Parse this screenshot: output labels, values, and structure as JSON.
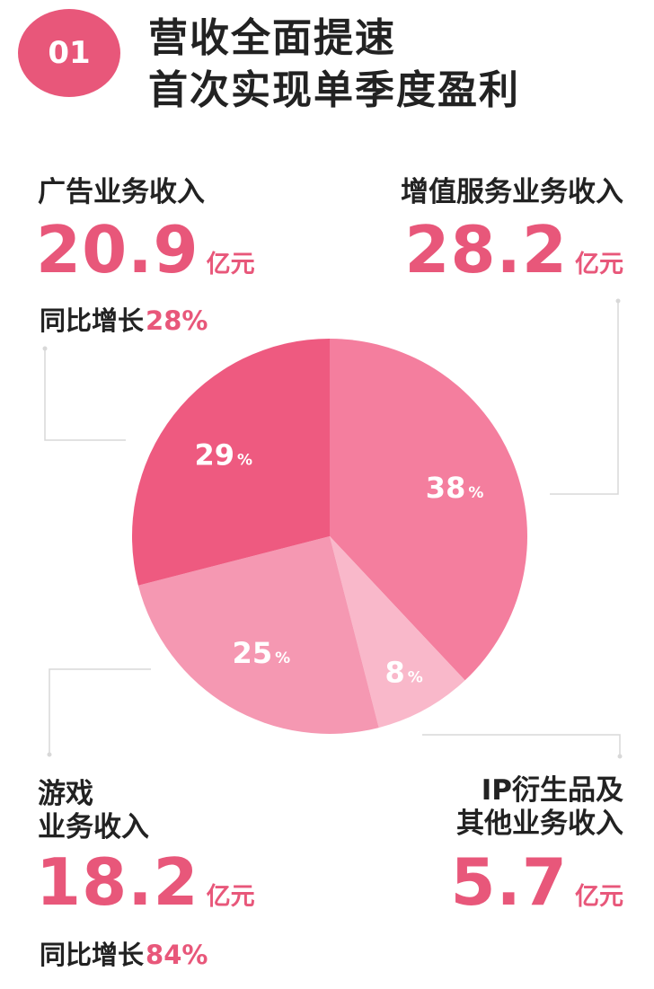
{
  "header": {
    "badge": "01",
    "title_line1": "营收全面提速",
    "title_line2": "首次实现单季度盈利"
  },
  "colors": {
    "accent": "#e8577a",
    "ad": "#ee5a80",
    "value_added": "#f47e9e",
    "ip": "#f9b8ca",
    "game": "#f598b2",
    "connector": "#d8d8d8"
  },
  "chart_data": {
    "type": "pie",
    "start_angle_deg": 0,
    "slices": [
      {
        "key": "value_added",
        "label": "增值服务业务收入",
        "value": 38,
        "pct_label": "38",
        "amount": "28.2",
        "unit": "亿元"
      },
      {
        "key": "ip",
        "label_line1": "IP衍生品及",
        "label_line2": "其他业务收入",
        "value": 8,
        "pct_label": "8",
        "amount": "5.7",
        "unit": "亿元"
      },
      {
        "key": "game",
        "label_line1": "游戏",
        "label_line2": "业务收入",
        "value": 25,
        "pct_label": "25",
        "amount": "18.2",
        "unit": "亿元",
        "growth_label": "同比增长",
        "growth": "84%"
      },
      {
        "key": "ad",
        "label": "广告业务收入",
        "value": 29,
        "pct_label": "29",
        "amount": "20.9",
        "unit": "亿元",
        "growth_label": "同比增长",
        "growth": "28%"
      }
    ],
    "pct_sign": "%"
  }
}
